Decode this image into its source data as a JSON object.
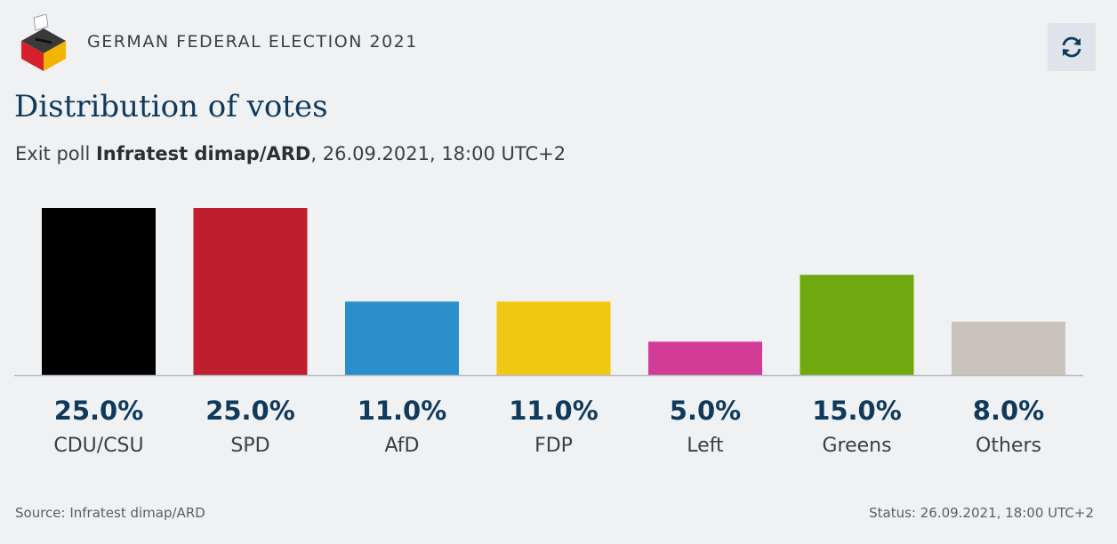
{
  "header": {
    "kicker": "GERMAN FEDERAL ELECTION 2021",
    "logo_icon": "ballot-box-icon",
    "refresh_icon": "refresh-icon"
  },
  "title": "Distribution of votes",
  "subtitle": {
    "prefix": "Exit poll ",
    "pollster": "Infratest dimap/ARD",
    "suffix": ", 26.09.2021, 18:00 UTC+2"
  },
  "chart_data": {
    "type": "bar",
    "categories": [
      "CDU/CSU",
      "SPD",
      "AfD",
      "FDP",
      "Left",
      "Greens",
      "Others"
    ],
    "values": [
      25.0,
      25.0,
      11.0,
      11.0,
      5.0,
      15.0,
      8.0
    ],
    "value_labels": [
      "25.0%",
      "25.0%",
      "11.0%",
      "11.0%",
      "5.0%",
      "15.0%",
      "8.0%"
    ],
    "colors": [
      "#000000",
      "#be1e2d",
      "#2b8fce",
      "#f0c814",
      "#d23c96",
      "#6fa80f",
      "#c8c4bc"
    ],
    "ylim": [
      0,
      25
    ],
    "grid": false,
    "legend": "none"
  },
  "footer": {
    "source": "Source: Infratest dimap/ARD",
    "status": "Status: 26.09.2021, 18:00 UTC+2"
  }
}
